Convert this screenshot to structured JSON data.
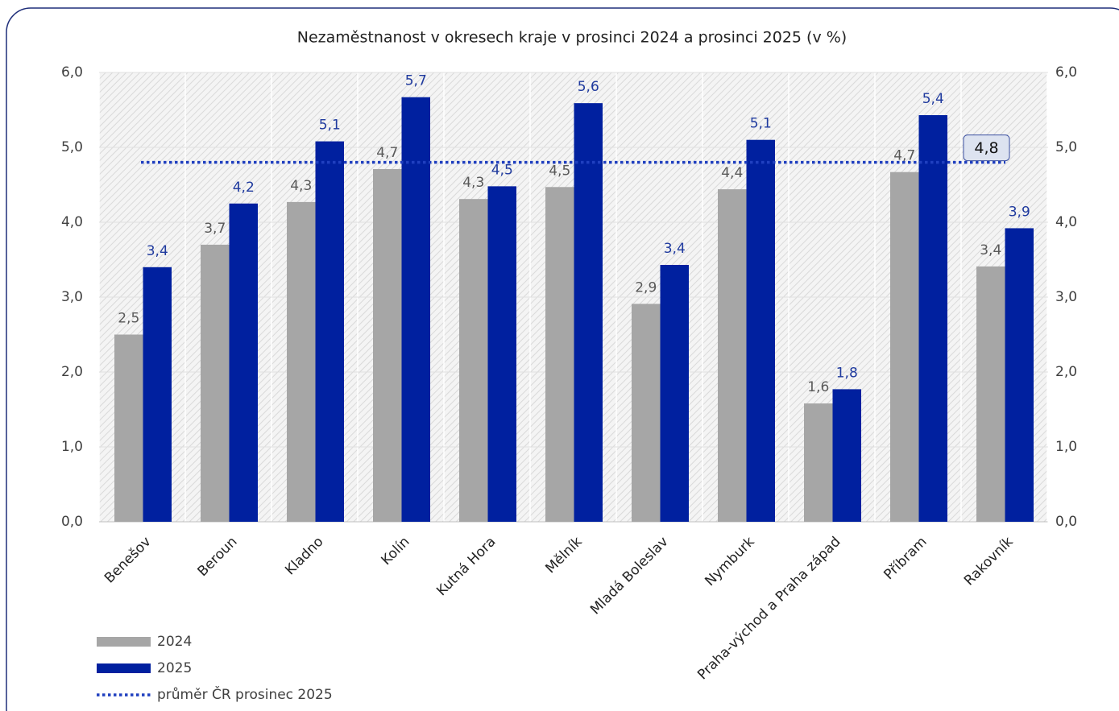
{
  "chart_data": {
    "type": "bar",
    "title": "Nezaměstnanost v okresech kraje v prosinci 2024 a prosinci 2025 (v %)",
    "categories": [
      "Benešov",
      "Beroun",
      "Kladno",
      "Kolín",
      "Kutná Hora",
      "Mělník",
      "Mladá Boleslav",
      "Nymburk",
      "Praha-východ a Praha západ",
      "Příbram",
      "Rakovník"
    ],
    "series": [
      {
        "name": "2024",
        "color": "#a6a6a6",
        "label_color": "#595959",
        "values": [
          2.5,
          3.7,
          4.27,
          4.71,
          4.31,
          4.47,
          2.91,
          4.44,
          1.58,
          4.67,
          3.41
        ],
        "value_labels": [
          "2,5",
          "3,7",
          "4,3",
          "4,7",
          "4,3",
          "4,5",
          "2,9",
          "4,4",
          "1,6",
          "4,7",
          "3,4"
        ]
      },
      {
        "name": "2025",
        "color": "#00209f",
        "label_color": "#1f3a9e",
        "values": [
          3.4,
          4.25,
          5.08,
          5.67,
          4.48,
          5.59,
          3.43,
          5.1,
          1.77,
          5.43,
          3.92
        ],
        "value_labels": [
          "3,4",
          "4,2",
          "5,1",
          "5,7",
          "4,5",
          "5,6",
          "3,4",
          "5,1",
          "1,8",
          "5,4",
          "3,9"
        ]
      }
    ],
    "reference_line": {
      "name": "průměr ČR prosinec 2025",
      "value": 4.8,
      "value_label": "4,8",
      "color": "#1f3fbf"
    },
    "ylim": [
      0,
      6
    ],
    "yticks": [
      {
        "value": 0,
        "label": "0,0"
      },
      {
        "value": 1,
        "label": "1,0"
      },
      {
        "value": 2,
        "label": "2,0"
      },
      {
        "value": 3,
        "label": "3,0"
      },
      {
        "value": 4,
        "label": "4,0"
      },
      {
        "value": 5,
        "label": "5,0"
      },
      {
        "value": 6,
        "label": "6,0"
      }
    ],
    "y2lim": [
      0,
      6
    ],
    "y2ticks": [
      {
        "value": 0,
        "label": "0,0"
      },
      {
        "value": 1,
        "label": "1,0"
      },
      {
        "value": 2,
        "label": "2,0"
      },
      {
        "value": 3,
        "label": "3,0"
      },
      {
        "value": 4,
        "label": "4,0"
      },
      {
        "value": 5,
        "label": "5,0"
      },
      {
        "value": 6,
        "label": "6,0"
      }
    ],
    "grid": true,
    "legend": "bottom-left"
  }
}
